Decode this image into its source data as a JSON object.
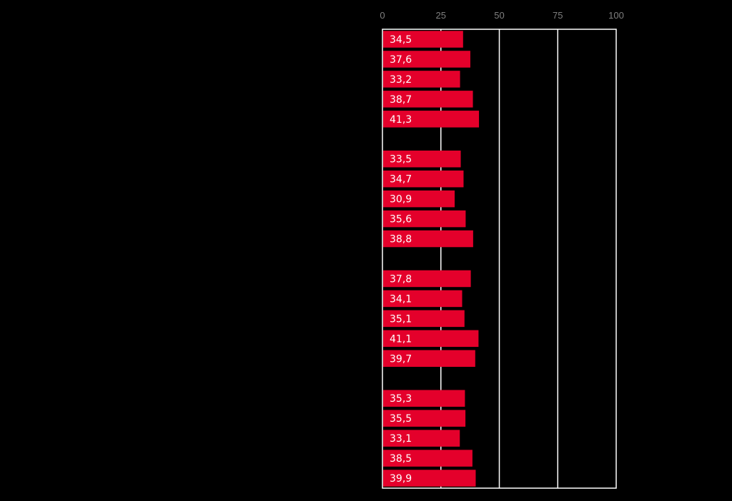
{
  "chart_data": {
    "type": "bar",
    "orientation": "horizontal",
    "title": "",
    "xlabel": "",
    "ylabel": "",
    "xlim": [
      0,
      100
    ],
    "x_ticks": [
      0,
      25,
      50,
      75,
      100
    ],
    "x_tick_labels": [
      "0",
      "25",
      "50",
      "75",
      "100"
    ],
    "x_axis_position": "top",
    "grid": true,
    "legend": "none",
    "bar_color": "#e4002b",
    "background_color": "#000000",
    "groups": [
      {
        "values": [
          34.5,
          37.6,
          33.2,
          38.7,
          41.3
        ],
        "labels": [
          "34,5",
          "37,6",
          "33,2",
          "38,7",
          "41,3"
        ]
      },
      {
        "values": [
          33.5,
          34.7,
          30.9,
          35.6,
          38.8
        ],
        "labels": [
          "33,5",
          "34,7",
          "30,9",
          "35,6",
          "38,8"
        ]
      },
      {
        "values": [
          37.8,
          34.1,
          35.1,
          41.1,
          39.7
        ],
        "labels": [
          "37,8",
          "34,1",
          "35,1",
          "41,1",
          "39,7"
        ]
      },
      {
        "values": [
          35.3,
          35.5,
          33.1,
          38.5,
          39.9
        ],
        "labels": [
          "35,3",
          "35,5",
          "33,1",
          "38,5",
          "39,9"
        ]
      }
    ]
  }
}
